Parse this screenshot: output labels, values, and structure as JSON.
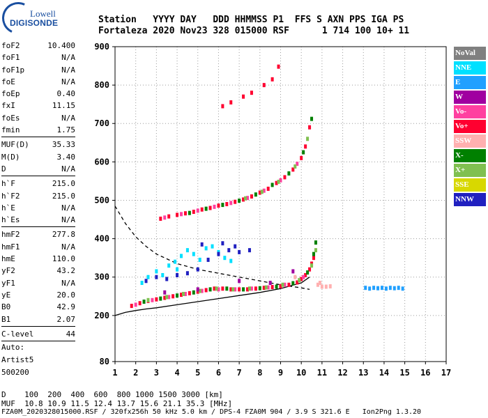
{
  "logo": {
    "line1": "Lowell",
    "line2": "DIGISONDE"
  },
  "header": {
    "labels_line": "Station   YYYY DAY   DDD HHMMSS P1  FFS S AXN PPS IGA PS",
    "values_line": "Fortaleza 2020 Nov23 328 015000 RSF      1 714 100 10+ 11"
  },
  "params": [
    [
      {
        "name": "foF2",
        "value": "10.400"
      },
      {
        "name": "foF1",
        "value": "N/A"
      },
      {
        "name": "foF1p",
        "value": "N/A"
      },
      {
        "name": "foE",
        "value": "N/A"
      },
      {
        "name": "foEp",
        "value": "0.40"
      },
      {
        "name": "fxI",
        "value": "11.15"
      },
      {
        "name": "foEs",
        "value": "N/A"
      },
      {
        "name": "fmin",
        "value": "1.75"
      }
    ],
    [
      {
        "name": "MUF(D)",
        "value": "35.33"
      },
      {
        "name": "M(D)",
        "value": "3.40"
      },
      {
        "name": "D",
        "value": "N/A"
      }
    ],
    [
      {
        "name": "h`F",
        "value": "215.0"
      },
      {
        "name": "h`F2",
        "value": "215.0"
      },
      {
        "name": "h`E",
        "value": "N/A"
      },
      {
        "name": "h`Es",
        "value": "N/A"
      }
    ],
    [
      {
        "name": "hmF2",
        "value": "277.8"
      },
      {
        "name": "hmF1",
        "value": "N/A"
      },
      {
        "name": "hmE",
        "value": "110.0"
      },
      {
        "name": "yF2",
        "value": "43.2"
      },
      {
        "name": "yF1",
        "value": "N/A"
      },
      {
        "name": "yE",
        "value": "20.0"
      },
      {
        "name": "B0",
        "value": "42.9"
      },
      {
        "name": "B1",
        "value": "2.07"
      }
    ],
    [
      {
        "name": "C-level",
        "value": "44"
      }
    ]
  ],
  "autoscale": {
    "line1": "Auto:",
    "line2": "Artist5",
    "line3": "500200"
  },
  "legend": [
    {
      "label": "NoVal",
      "color": "#808080"
    },
    {
      "label": "NNE",
      "color": "#00e0ff"
    },
    {
      "label": "E",
      "color": "#20a0ff"
    },
    {
      "label": "W",
      "color": "#a000a0"
    },
    {
      "label": "Vo-",
      "color": "#ff40a0"
    },
    {
      "label": "Vo+",
      "color": "#ff0030"
    },
    {
      "label": "SSW",
      "color": "#ffb0b0"
    },
    {
      "label": "X-",
      "color": "#008000"
    },
    {
      "label": "X+",
      "color": "#80c050"
    },
    {
      "label": "SSE",
      "color": "#d8d800"
    },
    {
      "label": "NNW",
      "color": "#2020c0"
    }
  ],
  "footer": {
    "d_line": "D    100  200  400  600  800 1000 1500 3000 [km]",
    "muf_line": "MUF  10.8 10.9 11.5 12.4 13.7 15.6 21.1 35.3 [MHz]",
    "info_line": "FZA0M_2020328015000.RSF / 320fx256h 50 kHz 5.0 km / DPS-4 FZA0M 904 / 3.9 S 321.6 E   Ion2Png 1.3.20"
  },
  "chart_data": {
    "type": "scatter",
    "xlim": [
      1,
      17
    ],
    "ylim": [
      80,
      900
    ],
    "x_ticks": [
      1,
      2,
      3,
      4,
      5,
      6,
      7,
      8,
      9,
      10,
      11,
      12,
      13,
      14,
      15,
      16,
      17
    ],
    "y_ticks": [
      80,
      200,
      300,
      400,
      500,
      600,
      700,
      800,
      900
    ],
    "grid": true,
    "series": [
      {
        "name": "Vo+",
        "color": "#ff0030",
        "points": [
          [
            1.8,
            225
          ],
          [
            2.2,
            232
          ],
          [
            2.6,
            238
          ],
          [
            3.0,
            242
          ],
          [
            3.4,
            246
          ],
          [
            3.8,
            250
          ],
          [
            4.2,
            254
          ],
          [
            4.6,
            258
          ],
          [
            5.0,
            262
          ],
          [
            5.4,
            266
          ],
          [
            5.8,
            270
          ],
          [
            6.2,
            270
          ],
          [
            6.6,
            268
          ],
          [
            7.0,
            268
          ],
          [
            7.4,
            268
          ],
          [
            7.8,
            270
          ],
          [
            8.2,
            272
          ],
          [
            8.6,
            274
          ],
          [
            9.0,
            276
          ],
          [
            9.4,
            280
          ],
          [
            9.8,
            286
          ],
          [
            10.0,
            295
          ],
          [
            10.2,
            305
          ],
          [
            10.4,
            320
          ],
          [
            10.5,
            335
          ],
          [
            10.6,
            350
          ],
          [
            3.2,
            452
          ],
          [
            3.6,
            458
          ],
          [
            4.0,
            462
          ],
          [
            4.4,
            466
          ],
          [
            4.8,
            470
          ],
          [
            5.2,
            476
          ],
          [
            5.6,
            480
          ],
          [
            6.0,
            486
          ],
          [
            6.4,
            490
          ],
          [
            6.8,
            496
          ],
          [
            7.2,
            502
          ],
          [
            7.6,
            510
          ],
          [
            8.0,
            520
          ],
          [
            8.4,
            530
          ],
          [
            8.8,
            545
          ],
          [
            9.2,
            560
          ],
          [
            9.6,
            580
          ],
          [
            10.0,
            610
          ],
          [
            10.2,
            640
          ],
          [
            10.4,
            690
          ],
          [
            6.2,
            745
          ],
          [
            6.6,
            755
          ],
          [
            7.2,
            770
          ],
          [
            7.6,
            780
          ],
          [
            8.2,
            800
          ],
          [
            8.6,
            815
          ],
          [
            8.9,
            848
          ]
        ]
      },
      {
        "name": "Vo-",
        "color": "#ff40a0",
        "points": [
          [
            2.0,
            228
          ],
          [
            2.8,
            240
          ],
          [
            3.6,
            248
          ],
          [
            4.4,
            256
          ],
          [
            5.2,
            264
          ],
          [
            6.0,
            268
          ],
          [
            6.8,
            268
          ],
          [
            7.6,
            270
          ],
          [
            8.4,
            273
          ],
          [
            9.2,
            280
          ],
          [
            10.1,
            300
          ],
          [
            3.4,
            455
          ],
          [
            4.2,
            464
          ],
          [
            5.0,
            473
          ],
          [
            5.8,
            483
          ],
          [
            6.6,
            493
          ],
          [
            7.4,
            506
          ],
          [
            8.2,
            525
          ],
          [
            9.0,
            552
          ],
          [
            9.8,
            595
          ]
        ]
      },
      {
        "name": "X-",
        "color": "#008000",
        "points": [
          [
            2.4,
            236
          ],
          [
            3.2,
            244
          ],
          [
            4.0,
            252
          ],
          [
            4.8,
            260
          ],
          [
            5.6,
            268
          ],
          [
            6.4,
            270
          ],
          [
            7.2,
            268
          ],
          [
            8.0,
            271
          ],
          [
            8.8,
            275
          ],
          [
            9.6,
            284
          ],
          [
            10.3,
            312
          ],
          [
            10.6,
            360
          ],
          [
            10.7,
            390
          ],
          [
            4.6,
            467
          ],
          [
            5.4,
            478
          ],
          [
            6.2,
            488
          ],
          [
            7.0,
            499
          ],
          [
            7.8,
            515
          ],
          [
            8.6,
            540
          ],
          [
            9.4,
            570
          ],
          [
            10.1,
            625
          ],
          [
            10.5,
            712
          ]
        ]
      },
      {
        "name": "X+",
        "color": "#80c050",
        "points": [
          [
            2.6,
            240
          ],
          [
            3.5,
            248
          ],
          [
            4.3,
            256
          ],
          [
            5.1,
            264
          ],
          [
            5.9,
            270
          ],
          [
            6.7,
            268
          ],
          [
            7.5,
            270
          ],
          [
            8.3,
            273
          ],
          [
            9.1,
            280
          ],
          [
            9.9,
            292
          ],
          [
            10.5,
            330
          ],
          [
            10.7,
            370
          ],
          [
            7.3,
            505
          ],
          [
            8.1,
            522
          ],
          [
            8.9,
            548
          ],
          [
            9.7,
            588
          ],
          [
            10.3,
            660
          ]
        ]
      },
      {
        "name": "NNE",
        "color": "#00e0ff",
        "points": [
          [
            2.6,
            300
          ],
          [
            3.0,
            315
          ],
          [
            3.3,
            305
          ],
          [
            3.6,
            330
          ],
          [
            3.9,
            340
          ],
          [
            4.2,
            355
          ],
          [
            4.5,
            370
          ],
          [
            4.8,
            360
          ],
          [
            5.1,
            345
          ],
          [
            5.4,
            375
          ],
          [
            5.7,
            380
          ],
          [
            6.0,
            365
          ],
          [
            6.3,
            350
          ],
          [
            6.6,
            342
          ],
          [
            2.3,
            285
          ],
          [
            4.0,
            320
          ]
        ]
      },
      {
        "name": "NNW",
        "color": "#2020c0",
        "points": [
          [
            2.5,
            290
          ],
          [
            3.0,
            300
          ],
          [
            3.5,
            295
          ],
          [
            4.0,
            305
          ],
          [
            4.5,
            310
          ],
          [
            5.0,
            320
          ],
          [
            5.5,
            345
          ],
          [
            6.0,
            360
          ],
          [
            6.5,
            370
          ],
          [
            7.0,
            365
          ],
          [
            7.5,
            370
          ],
          [
            5.2,
            385
          ],
          [
            6.2,
            388
          ],
          [
            6.8,
            380
          ]
        ]
      },
      {
        "name": "E",
        "color": "#20a0ff",
        "points": [
          [
            13.1,
            272
          ],
          [
            13.3,
            270
          ],
          [
            13.5,
            272
          ],
          [
            13.7,
            271
          ],
          [
            13.9,
            272
          ],
          [
            14.1,
            270
          ],
          [
            14.3,
            272
          ],
          [
            14.5,
            271
          ],
          [
            14.7,
            272
          ],
          [
            14.9,
            270
          ]
        ]
      },
      {
        "name": "SSW",
        "color": "#ffb0b0",
        "points": [
          [
            10.8,
            280
          ],
          [
            11.0,
            275
          ],
          [
            11.2,
            275
          ],
          [
            11.4,
            276
          ],
          [
            9.7,
            300
          ],
          [
            10.9,
            285
          ]
        ]
      },
      {
        "name": "W",
        "color": "#a000a0",
        "points": [
          [
            3.4,
            260
          ],
          [
            5.0,
            268
          ],
          [
            7.0,
            290
          ],
          [
            8.5,
            285
          ],
          [
            9.6,
            315
          ]
        ]
      }
    ],
    "curves": [
      {
        "kind": "dashed",
        "points": [
          [
            1.0,
            485
          ],
          [
            1.5,
            440
          ],
          [
            2.0,
            405
          ],
          [
            2.5,
            380
          ],
          [
            3.0,
            360
          ],
          [
            4.0,
            335
          ],
          [
            5.0,
            320
          ],
          [
            6.0,
            310
          ],
          [
            7.0,
            300
          ],
          [
            8.0,
            290
          ],
          [
            9.0,
            280
          ],
          [
            10.0,
            272
          ],
          [
            10.4,
            268
          ]
        ]
      },
      {
        "kind": "solid",
        "points": [
          [
            1.0,
            200
          ],
          [
            1.5,
            208
          ],
          [
            2.0,
            213
          ],
          [
            2.5,
            217
          ],
          [
            3.0,
            220
          ],
          [
            4.0,
            228
          ],
          [
            5.0,
            236
          ],
          [
            6.0,
            244
          ],
          [
            7.0,
            252
          ],
          [
            8.0,
            260
          ],
          [
            9.0,
            270
          ],
          [
            10.0,
            285
          ],
          [
            10.4,
            300
          ]
        ]
      }
    ]
  }
}
